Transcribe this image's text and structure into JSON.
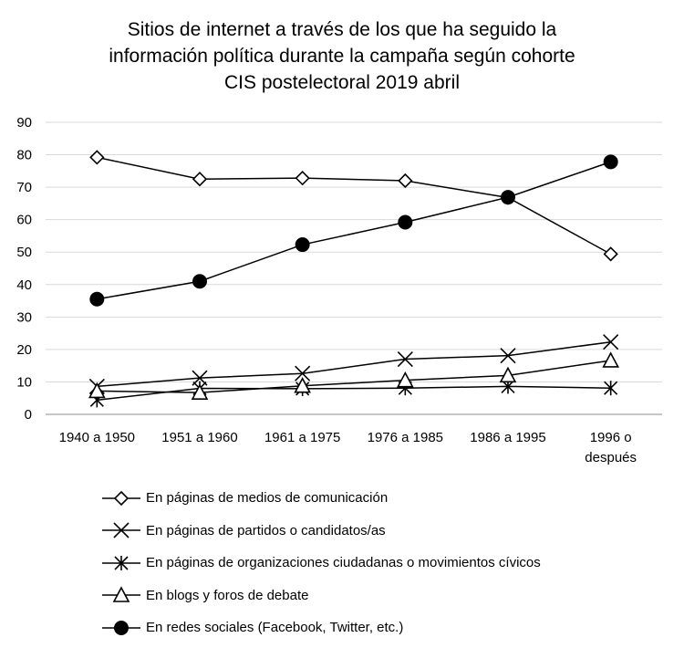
{
  "chart_data": {
    "type": "line",
    "title": "Sitios de internet a través de los que ha seguido la información política durante la campaña según cohorte CIS postelectoral 2019 abril",
    "title_lines": [
      "Sitios de internet a través de los que ha seguido la",
      "información política durante la campaña según cohorte",
      "CIS postelectoral 2019 abril"
    ],
    "categories": [
      [
        "1940 a 1950"
      ],
      [
        "1951 a 1960"
      ],
      [
        "1961 a 1975"
      ],
      [
        "1976 a 1985"
      ],
      [
        "1986 a 1995"
      ],
      [
        "1996 o",
        "después"
      ]
    ],
    "ylim": [
      0,
      90
    ],
    "yticks": [
      0,
      10,
      20,
      30,
      40,
      50,
      60,
      70,
      80,
      90
    ],
    "grid": "horizontal",
    "legend_position": "bottom",
    "series": [
      {
        "name": "En páginas de medios de comunicación",
        "marker": "diamond-open",
        "values": [
          79.2,
          72.5,
          72.8,
          72.0,
          66.8,
          49.4
        ]
      },
      {
        "name": "En páginas de partidos o candidatos/as",
        "marker": "x",
        "values": [
          8.6,
          11.2,
          12.6,
          17.0,
          18.1,
          22.3
        ]
      },
      {
        "name": "En páginas de organizaciones ciudadanas o movimientos cívicos",
        "marker": "asterisk",
        "values": [
          4.4,
          8.0,
          7.9,
          8.1,
          8.6,
          8.1
        ]
      },
      {
        "name": "En blogs y foros de debate",
        "marker": "triangle-open",
        "values": [
          7.2,
          6.7,
          8.8,
          10.5,
          12.0,
          16.6
        ]
      },
      {
        "name": "En redes sociales (Facebook, Twitter, etc.)",
        "marker": "circle-filled",
        "values": [
          35.5,
          41.0,
          52.3,
          59.2,
          66.9,
          77.8
        ]
      }
    ]
  }
}
